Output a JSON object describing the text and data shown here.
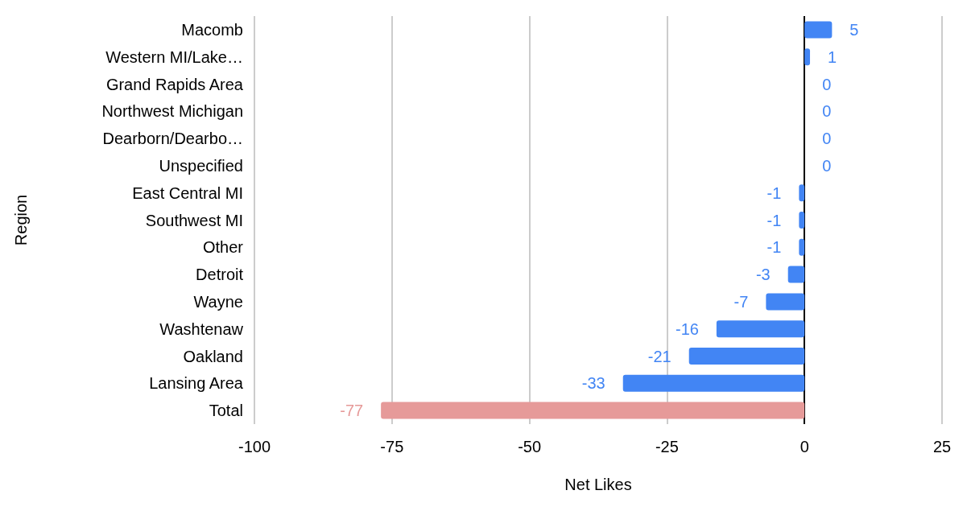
{
  "chart_data": {
    "type": "bar",
    "orientation": "horizontal",
    "xlabel": "Net Likes",
    "ylabel": "Region",
    "categories": [
      "Macomb",
      "Western MI/Lake…",
      "Grand Rapids Area",
      "Northwest Michigan",
      "Dearborn/Dearbo…",
      "Unspecified",
      "East Central MI",
      "Southwest MI",
      "Other",
      "Detroit",
      "Wayne",
      "Washtenaw",
      "Oakland",
      "Lansing Area",
      "Total"
    ],
    "values": [
      5,
      1,
      0,
      0,
      0,
      0,
      -1,
      -1,
      -1,
      -3,
      -7,
      -16,
      -21,
      -33,
      -77
    ],
    "colors": [
      "#4285f4",
      "#4285f4",
      "#4285f4",
      "#4285f4",
      "#4285f4",
      "#4285f4",
      "#4285f4",
      "#4285f4",
      "#4285f4",
      "#4285f4",
      "#4285f4",
      "#4285f4",
      "#4285f4",
      "#4285f4",
      "#e69a99"
    ],
    "xlim": [
      -100,
      25
    ],
    "xticks": [
      -100,
      -75,
      -50,
      -25,
      0,
      25
    ],
    "grid": "x",
    "data_labels": true
  }
}
